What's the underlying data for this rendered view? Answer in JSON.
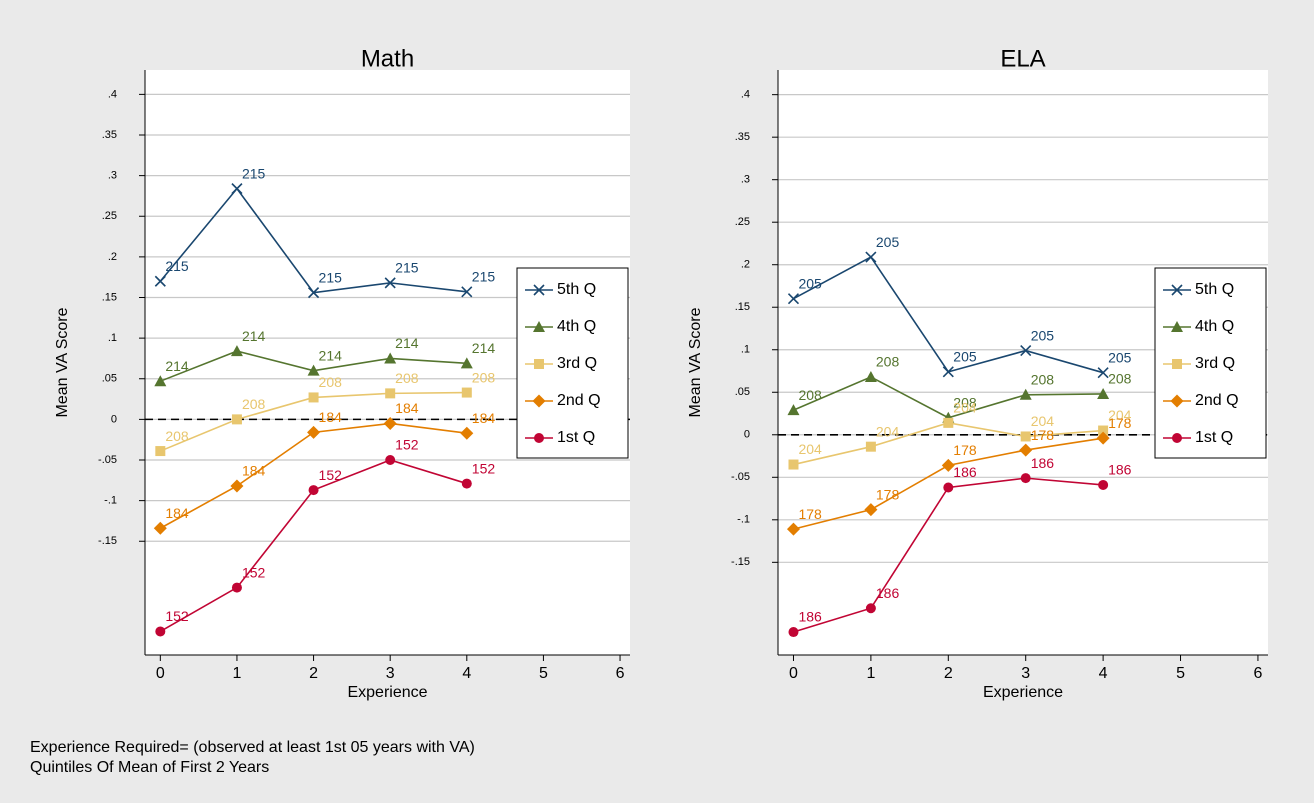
{
  "chart_data": [
    {
      "type": "line",
      "title": "Math",
      "x_label": "Experience",
      "y_label": "Mean VA Score",
      "x": [
        0,
        1,
        2,
        3,
        4
      ],
      "xlim": [
        -0.2,
        6.13
      ],
      "xticks": [
        0,
        1,
        2,
        3,
        4,
        5,
        6
      ],
      "ylim": [
        -0.29,
        0.43
      ],
      "yticks": [
        {
          "value": 0.4,
          "label": ".4"
        },
        {
          "value": 0.35,
          "label": ".35"
        },
        {
          "value": 0.3,
          "label": ".3"
        },
        {
          "value": 0.25,
          "label": ".25"
        },
        {
          "value": 0.2,
          "label": ".2"
        },
        {
          "value": 0.15,
          "label": ".15"
        },
        {
          "value": 0.1,
          "label": ".1"
        },
        {
          "value": 0.05,
          "label": ".05"
        },
        0,
        {
          "value": -0.05,
          "label": "-.05"
        },
        {
          "value": -0.1,
          "label": "-.1"
        },
        {
          "value": -0.15,
          "label": "-.15"
        }
      ],
      "grid": true,
      "yline": 0,
      "legend": "right",
      "series": [
        {
          "name": "5th Q",
          "color": "#1a476f",
          "marker": "x",
          "values": [
            0.17,
            0.284,
            0.156,
            0.168,
            0.157
          ],
          "labels": [
            215,
            215,
            215,
            215,
            215
          ]
        },
        {
          "name": "4th Q",
          "color": "#55752f",
          "marker": "triangle",
          "values": [
            0.047,
            0.084,
            0.06,
            0.075,
            0.069
          ],
          "labels": [
            214,
            214,
            214,
            214,
            214
          ]
        },
        {
          "name": "3rd Q",
          "color": "#e8c66e",
          "marker": "square",
          "values": [
            -0.039,
            0.0,
            0.027,
            0.032,
            0.033
          ],
          "labels": [
            208,
            208,
            208,
            208,
            208
          ]
        },
        {
          "name": "2nd Q",
          "color": "#e37e00",
          "marker": "diamond",
          "values": [
            -0.134,
            -0.082,
            -0.016,
            -0.005,
            -0.017
          ],
          "labels": [
            184,
            184,
            184,
            184,
            184
          ]
        },
        {
          "name": "1st Q",
          "color": "#c10534",
          "marker": "circle",
          "values": [
            -0.261,
            -0.207,
            -0.087,
            -0.05,
            -0.079
          ],
          "labels": [
            152,
            152,
            152,
            152,
            152
          ]
        }
      ]
    },
    {
      "type": "line",
      "title": "ELA",
      "x_label": "Experience",
      "y_label": "Mean VA Score",
      "x": [
        0,
        1,
        2,
        3,
        4
      ],
      "xlim": [
        -0.2,
        6.13
      ],
      "xticks": [
        0,
        1,
        2,
        3,
        4,
        5,
        6
      ],
      "ylim": [
        -0.259,
        0.429
      ],
      "yticks": [
        {
          "value": 0.4,
          "label": ".4"
        },
        {
          "value": 0.35,
          "label": ".35"
        },
        {
          "value": 0.3,
          "label": ".3"
        },
        {
          "value": 0.25,
          "label": ".25"
        },
        {
          "value": 0.2,
          "label": ".2"
        },
        {
          "value": 0.15,
          "label": ".15"
        },
        {
          "value": 0.1,
          "label": ".1"
        },
        {
          "value": 0.05,
          "label": ".05"
        },
        0,
        {
          "value": -0.05,
          "label": "-.05"
        },
        {
          "value": -0.1,
          "label": "-.1"
        },
        {
          "value": -0.15,
          "label": "-.15"
        }
      ],
      "grid": true,
      "yline": 0,
      "legend": "right",
      "series": [
        {
          "name": "5th Q",
          "color": "#1a476f",
          "marker": "x",
          "values": [
            0.16,
            0.209,
            0.074,
            0.099,
            0.073
          ],
          "labels": [
            205,
            205,
            205,
            205,
            205
          ]
        },
        {
          "name": "4th Q",
          "color": "#55752f",
          "marker": "triangle",
          "values": [
            0.029,
            0.068,
            0.02,
            0.047,
            0.048
          ],
          "labels": [
            208,
            208,
            208,
            208,
            208
          ]
        },
        {
          "name": "3rd Q",
          "color": "#e8c66e",
          "marker": "square",
          "values": [
            -0.035,
            -0.014,
            0.014,
            -0.002,
            0.005
          ],
          "labels": [
            204,
            204,
            204,
            204,
            204
          ]
        },
        {
          "name": "2nd Q",
          "color": "#e37e00",
          "marker": "diamond",
          "values": [
            -0.111,
            -0.088,
            -0.036,
            -0.018,
            -0.004
          ],
          "labels": [
            178,
            178,
            178,
            178,
            178
          ]
        },
        {
          "name": "1st Q",
          "color": "#c10534",
          "marker": "circle",
          "values": [
            -0.232,
            -0.204,
            -0.062,
            -0.051,
            -0.059
          ],
          "labels": [
            186,
            186,
            186,
            186,
            186
          ]
        }
      ]
    }
  ],
  "notes": [
    "Experience Required= (observed at least 1st 05 years with VA)",
    "Quintiles Of Mean of First 2 Years"
  ]
}
